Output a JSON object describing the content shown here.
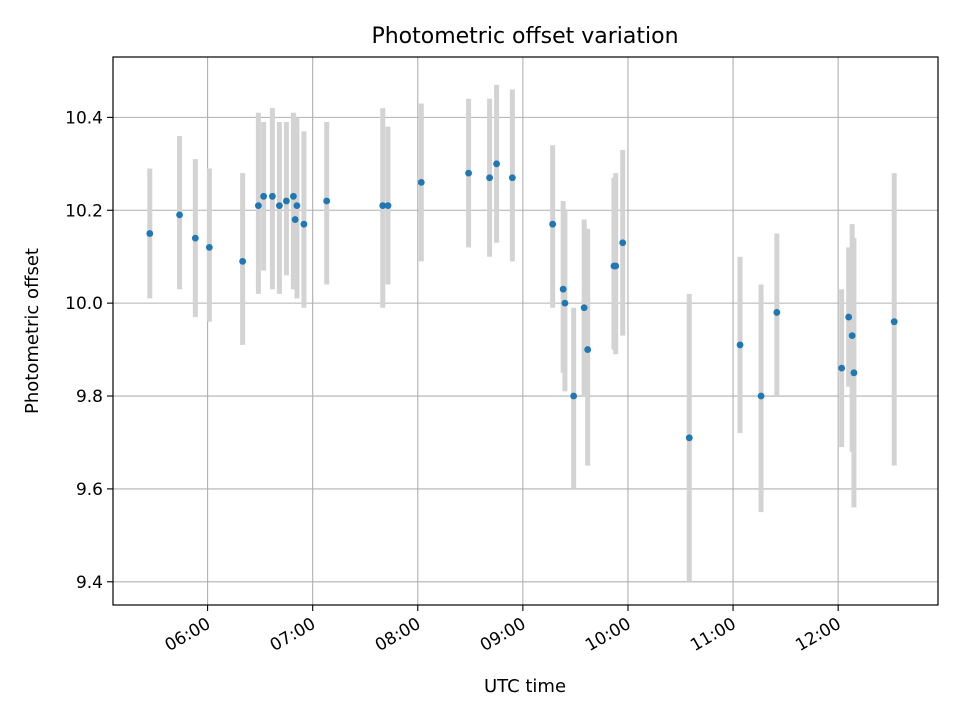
{
  "chart_data": {
    "type": "scatter",
    "title": "Photometric offset variation",
    "xlabel": "UTC time",
    "ylabel": "Photometric offset",
    "x_axis": {
      "type": "time",
      "min": "05:06",
      "max": "12:57",
      "ticks": [
        "06:00",
        "07:00",
        "08:00",
        "09:00",
        "10:00",
        "11:00",
        "12:00"
      ]
    },
    "y_axis": {
      "min": 9.35,
      "max": 10.53,
      "ticks": [
        9.4,
        9.6,
        9.8,
        10.0,
        10.2,
        10.4
      ],
      "tick_labels": [
        "9.4",
        "9.6",
        "9.8",
        "10.0",
        "10.2",
        "10.4"
      ]
    },
    "grid": true,
    "marker_color": "#1f77b4",
    "errorbar_color": "#d3d3d3",
    "series": [
      {
        "points": [
          {
            "t": "05:27",
            "y": 10.15,
            "lo": 10.01,
            "hi": 10.29
          },
          {
            "t": "05:44",
            "y": 10.19,
            "lo": 10.03,
            "hi": 10.36
          },
          {
            "t": "05:53",
            "y": 10.14,
            "lo": 9.97,
            "hi": 10.31
          },
          {
            "t": "06:01",
            "y": 10.12,
            "lo": 9.96,
            "hi": 10.29
          },
          {
            "t": "06:20",
            "y": 10.09,
            "lo": 9.91,
            "hi": 10.28
          },
          {
            "t": "06:29",
            "y": 10.21,
            "lo": 10.02,
            "hi": 10.41
          },
          {
            "t": "06:32",
            "y": 10.23,
            "lo": 10.07,
            "hi": 10.39
          },
          {
            "t": "06:37",
            "y": 10.23,
            "lo": 10.03,
            "hi": 10.42
          },
          {
            "t": "06:41",
            "y": 10.21,
            "lo": 10.02,
            "hi": 10.39
          },
          {
            "t": "06:45",
            "y": 10.22,
            "lo": 10.06,
            "hi": 10.39
          },
          {
            "t": "06:49",
            "y": 10.23,
            "lo": 10.03,
            "hi": 10.41
          },
          {
            "t": "06:50",
            "y": 10.18,
            "lo": 10.03,
            "hi": 10.34
          },
          {
            "t": "06:51",
            "y": 10.21,
            "lo": 10.01,
            "hi": 10.4
          },
          {
            "t": "06:55",
            "y": 10.17,
            "lo": 9.99,
            "hi": 10.37
          },
          {
            "t": "07:08",
            "y": 10.22,
            "lo": 10.04,
            "hi": 10.39
          },
          {
            "t": "07:40",
            "y": 10.21,
            "lo": 9.99,
            "hi": 10.42
          },
          {
            "t": "07:43",
            "y": 10.21,
            "lo": 10.04,
            "hi": 10.38
          },
          {
            "t": "08:02",
            "y": 10.26,
            "lo": 10.09,
            "hi": 10.43
          },
          {
            "t": "08:29",
            "y": 10.28,
            "lo": 10.12,
            "hi": 10.44
          },
          {
            "t": "08:41",
            "y": 10.27,
            "lo": 10.1,
            "hi": 10.44
          },
          {
            "t": "08:45",
            "y": 10.3,
            "lo": 10.13,
            "hi": 10.47
          },
          {
            "t": "08:54",
            "y": 10.27,
            "lo": 10.09,
            "hi": 10.46
          },
          {
            "t": "09:17",
            "y": 10.17,
            "lo": 9.99,
            "hi": 10.34
          },
          {
            "t": "09:23",
            "y": 10.03,
            "lo": 9.85,
            "hi": 10.22
          },
          {
            "t": "09:24",
            "y": 10.0,
            "lo": 9.81,
            "hi": 10.2
          },
          {
            "t": "09:29",
            "y": 9.8,
            "lo": 9.6,
            "hi": 9.99
          },
          {
            "t": "09:35",
            "y": 9.99,
            "lo": 9.8,
            "hi": 10.18
          },
          {
            "t": "09:37",
            "y": 9.9,
            "lo": 9.65,
            "hi": 10.16
          },
          {
            "t": "09:52",
            "y": 10.08,
            "lo": 9.9,
            "hi": 10.27
          },
          {
            "t": "09:53",
            "y": 10.08,
            "lo": 9.89,
            "hi": 10.28
          },
          {
            "t": "09:57",
            "y": 10.13,
            "lo": 9.93,
            "hi": 10.33
          },
          {
            "t": "10:35",
            "y": 9.71,
            "lo": 9.4,
            "hi": 10.02
          },
          {
            "t": "11:04",
            "y": 9.91,
            "lo": 9.72,
            "hi": 10.1
          },
          {
            "t": "11:16",
            "y": 9.8,
            "lo": 9.55,
            "hi": 10.04
          },
          {
            "t": "11:25",
            "y": 9.98,
            "lo": 9.8,
            "hi": 10.15
          },
          {
            "t": "12:02",
            "y": 9.86,
            "lo": 9.69,
            "hi": 10.03
          },
          {
            "t": "12:06",
            "y": 9.97,
            "lo": 9.82,
            "hi": 10.12
          },
          {
            "t": "12:08",
            "y": 9.93,
            "lo": 9.68,
            "hi": 10.17
          },
          {
            "t": "12:09",
            "y": 9.85,
            "lo": 9.56,
            "hi": 10.14
          },
          {
            "t": "12:32",
            "y": 9.96,
            "lo": 9.65,
            "hi": 10.28
          }
        ]
      }
    ]
  }
}
